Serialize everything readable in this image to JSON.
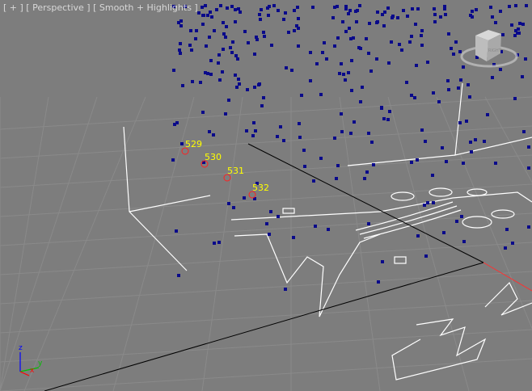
{
  "viewport": {
    "menu_plus": "[ + ]",
    "view_name": "[ Perspective ]",
    "shading_mode": "[ Smooth + Highlights ]",
    "viewcube_face": "RIGHT",
    "vertex_labels": [
      "529",
      "530",
      "531",
      "532"
    ],
    "axis_labels": {
      "x": "x",
      "y": "y",
      "z": "z"
    }
  },
  "colors": {
    "background": "#7d7d7d",
    "points": "#0a0a8a",
    "vertex_label": "#ffff00",
    "vertex_marker": "#ff2020",
    "spline": "#ffffff",
    "axis_x": "#ff0000",
    "axis_y": "#00c000",
    "axis_z": "#0000ff"
  }
}
